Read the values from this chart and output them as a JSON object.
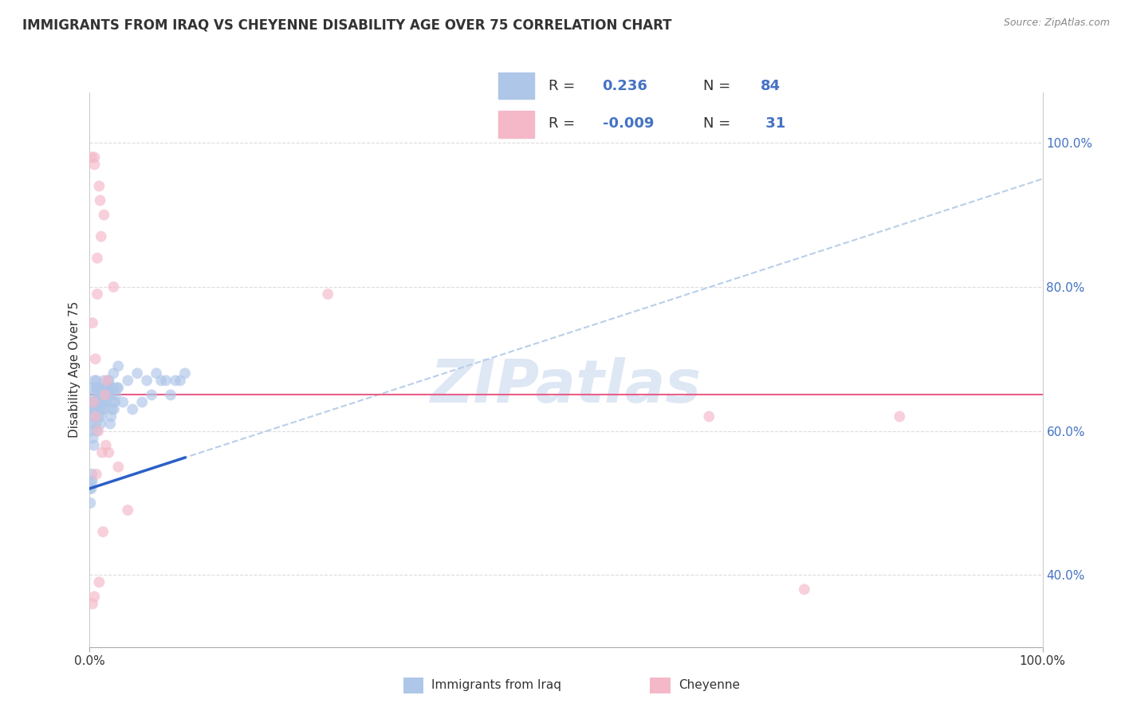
{
  "title": "IMMIGRANTS FROM IRAQ VS CHEYENNE DISABILITY AGE OVER 75 CORRELATION CHART",
  "source": "Source: ZipAtlas.com",
  "ylabel": "Disability Age Over 75",
  "watermark": "ZIPatlas",
  "R_blue": 0.236,
  "N_blue": 84,
  "R_pink": -0.009,
  "N_pink": 31,
  "blue_scatter_x": [
    0.2,
    0.5,
    1.0,
    0.3,
    0.8,
    1.2,
    0.4,
    0.7,
    0.9,
    1.5,
    2.0,
    2.5,
    1.8,
    3.0,
    4.0,
    5.0,
    6.0,
    7.0,
    8.0,
    9.0,
    0.1,
    0.2,
    0.3,
    0.4,
    0.5,
    0.6,
    0.7,
    0.8,
    0.9,
    1.0,
    1.1,
    1.2,
    1.3,
    1.4,
    1.5,
    1.6,
    1.7,
    1.8,
    2.0,
    2.2,
    2.5,
    3.0,
    3.5,
    4.5,
    5.5,
    6.5,
    7.5,
    8.5,
    9.5,
    10.0,
    0.15,
    0.25,
    0.35,
    0.45,
    0.55,
    0.65,
    0.75,
    0.85,
    0.95,
    1.05,
    1.15,
    1.25,
    1.35,
    1.45,
    1.55,
    1.65,
    1.75,
    1.85,
    1.95,
    2.05,
    2.15,
    2.25,
    2.35,
    2.45,
    2.55,
    2.65,
    2.75,
    2.85,
    0.05,
    0.08,
    0.12,
    0.18,
    0.22,
    0.28
  ],
  "blue_scatter_y": [
    66.0,
    67.0,
    65.0,
    64.0,
    66.0,
    65.0,
    63.0,
    67.0,
    65.0,
    67.0,
    67.0,
    68.0,
    66.0,
    69.0,
    67.0,
    68.0,
    67.0,
    68.0,
    67.0,
    67.0,
    63.0,
    62.0,
    63.0,
    64.0,
    65.0,
    64.0,
    66.0,
    66.0,
    63.0,
    65.0,
    64.0,
    65.0,
    66.0,
    65.0,
    66.0,
    65.0,
    64.0,
    65.0,
    66.0,
    65.0,
    66.0,
    66.0,
    64.0,
    63.0,
    64.0,
    65.0,
    67.0,
    65.0,
    67.0,
    68.0,
    61.0,
    60.0,
    59.0,
    58.0,
    62.0,
    61.0,
    60.0,
    63.0,
    62.0,
    63.0,
    61.0,
    62.0,
    63.0,
    64.0,
    63.0,
    64.0,
    65.0,
    66.0,
    67.0,
    66.0,
    61.0,
    62.0,
    63.0,
    64.0,
    63.0,
    64.0,
    65.0,
    66.0,
    52.0,
    50.0,
    53.0,
    52.0,
    54.0,
    53.0
  ],
  "pink_scatter_x": [
    0.5,
    1.0,
    1.5,
    1.2,
    0.8,
    2.5,
    0.3,
    0.6,
    1.8,
    0.4,
    0.9,
    1.3,
    0.7,
    65.0,
    75.0,
    0.2,
    1.1,
    0.5,
    1.6,
    85.0,
    1.4,
    0.6,
    25.0,
    0.8,
    2.0,
    3.0,
    4.0,
    1.7,
    0.3,
    0.5,
    1.0
  ],
  "pink_scatter_y": [
    98.0,
    94.0,
    90.0,
    87.0,
    84.0,
    80.0,
    75.0,
    70.0,
    67.0,
    64.0,
    60.0,
    57.0,
    54.0,
    62.0,
    38.0,
    98.0,
    92.0,
    97.0,
    65.0,
    62.0,
    46.0,
    62.0,
    79.0,
    79.0,
    57.0,
    55.0,
    49.0,
    58.0,
    36.0,
    37.0,
    39.0
  ],
  "blue_line_y_start": 52.0,
  "blue_line_y_end": 95.0,
  "pink_line_y": 65.0,
  "bg_color": "#ffffff",
  "blue_dot_color": "#aec6e8",
  "pink_dot_color": "#f4b8c8",
  "blue_solid_color": "#2b5fc7",
  "pink_line_color": "#e8608a",
  "blue_dashed_color": "#b8cfe8",
  "grid_color": "#dddddd",
  "title_color": "#333333",
  "right_axis_color": "#4472c4",
  "label_color": "#333333",
  "watermark_color": "#c8d8ee",
  "dot_size": 100,
  "dot_alpha": 0.65,
  "xlim": [
    0,
    100
  ],
  "ylim": [
    30,
    107
  ]
}
